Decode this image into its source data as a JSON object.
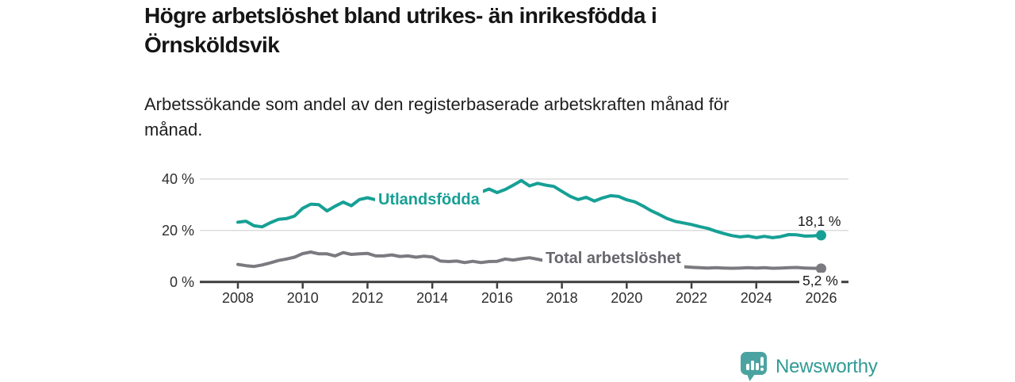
{
  "title": "Högre arbetslöshet bland utrikes- än inrikesfödda i Örnsköldsvik",
  "subtitle": "Arbetssökande som andel av den registerbaserade arbetskraften månad för månad.",
  "branding": {
    "logo_text": "Newsworthy",
    "logo_icon": "bar-chart-speech-bubble-icon"
  },
  "colors": {
    "accent_teal": "#16A095",
    "line_gray": "#7A7A80",
    "series_label_gray": "#66666C",
    "axis": "#3D3D3D",
    "gridline": "#DCDCDC",
    "text": "#151515",
    "logo_teal": "#2F9B93",
    "logo_icon_teal": "#4BA3A1"
  },
  "chart_data": {
    "type": "line",
    "title": "Högre arbetslöshet bland utrikes- än inrikesfödda i Örnsköldsvik",
    "subtitle": "Arbetssökande som andel av den registerbaserade arbetskraften månad för månad.",
    "unit": "%",
    "x_unit": "year",
    "xlim": [
      2008,
      2026.8
    ],
    "ylim": [
      0,
      44
    ],
    "grid": "horizontal",
    "legend_position": "inline-labels",
    "x_ticks": [
      2008,
      2010,
      2012,
      2014,
      2016,
      2018,
      2020,
      2022,
      2024,
      2026
    ],
    "y_ticks": [
      "0 %",
      "20 %",
      "40 %"
    ],
    "y_tick_values": [
      0,
      20,
      40
    ],
    "x": [
      2008,
      2008.25,
      2008.5,
      2008.75,
      2009,
      2009.25,
      2009.5,
      2009.75,
      2010,
      2010.25,
      2010.5,
      2010.75,
      2011,
      2011.25,
      2011.5,
      2011.75,
      2012,
      2012.25,
      2012.5,
      2012.75,
      2013,
      2013.25,
      2013.5,
      2013.75,
      2014,
      2014.25,
      2014.5,
      2014.75,
      2015,
      2015.25,
      2015.5,
      2015.75,
      2016,
      2016.25,
      2016.5,
      2016.75,
      2017,
      2017.25,
      2017.5,
      2017.75,
      2018,
      2018.25,
      2018.5,
      2018.75,
      2019,
      2019.25,
      2019.5,
      2019.75,
      2020,
      2020.25,
      2020.5,
      2020.75,
      2021,
      2021.25,
      2021.5,
      2021.75,
      2022,
      2022.25,
      2022.5,
      2022.75,
      2023,
      2023.25,
      2023.5,
      2023.75,
      2024,
      2024.25,
      2024.5,
      2024.75,
      2025,
      2025.25,
      2025.5,
      2025.75,
      2026
    ],
    "series": [
      {
        "name": "Utlandsfödda",
        "color": "#16A095",
        "end_label": "18,1 %",
        "end_value": 18.1,
        "values": [
          23.2,
          23.6,
          21.8,
          21.4,
          23.0,
          24.3,
          24.6,
          25.6,
          28.6,
          30.2,
          30.0,
          27.6,
          29.4,
          31.0,
          29.6,
          32.0,
          32.7,
          31.9,
          31.5,
          31.9,
          31.5,
          31.9,
          32.2,
          32.6,
          32.3,
          32.9,
          33.3,
          33.7,
          34.1,
          34.5,
          34.9,
          36.1,
          34.7,
          35.9,
          37.6,
          39.4,
          37.3,
          38.3,
          37.6,
          37.1,
          35.2,
          33.3,
          32.0,
          32.9,
          31.4,
          32.6,
          33.5,
          33.2,
          31.9,
          31.1,
          29.5,
          27.7,
          26.2,
          24.6,
          23.5,
          22.9,
          22.3,
          21.5,
          20.8,
          19.7,
          18.8,
          18.0,
          17.5,
          17.8,
          17.2,
          17.7,
          17.2,
          17.6,
          18.4,
          18.3,
          17.8,
          17.9,
          18.1
        ]
      },
      {
        "name": "Total arbetslöshet",
        "color": "#7A7A80",
        "end_label": "5,2 %",
        "end_value": 5.2,
        "values": [
          6.8,
          6.3,
          6.0,
          6.6,
          7.4,
          8.3,
          8.9,
          9.6,
          11.0,
          11.6,
          10.9,
          10.9,
          10.1,
          11.4,
          10.7,
          10.9,
          11.1,
          10.1,
          10.1,
          10.5,
          9.9,
          10.1,
          9.6,
          10.0,
          9.7,
          8.1,
          7.9,
          8.1,
          7.5,
          8.0,
          7.5,
          7.9,
          8.0,
          8.9,
          8.5,
          9.0,
          9.4,
          8.8,
          8.2,
          7.9,
          7.7,
          7.4,
          7.2,
          7.3,
          7.2,
          7.1,
          7.0,
          7.1,
          7.2,
          7.6,
          7.8,
          7.5,
          7.0,
          6.6,
          6.2,
          5.9,
          5.7,
          5.5,
          5.4,
          5.5,
          5.4,
          5.3,
          5.4,
          5.5,
          5.4,
          5.5,
          5.3,
          5.4,
          5.5,
          5.6,
          5.4,
          5.3,
          5.2
        ]
      }
    ]
  }
}
